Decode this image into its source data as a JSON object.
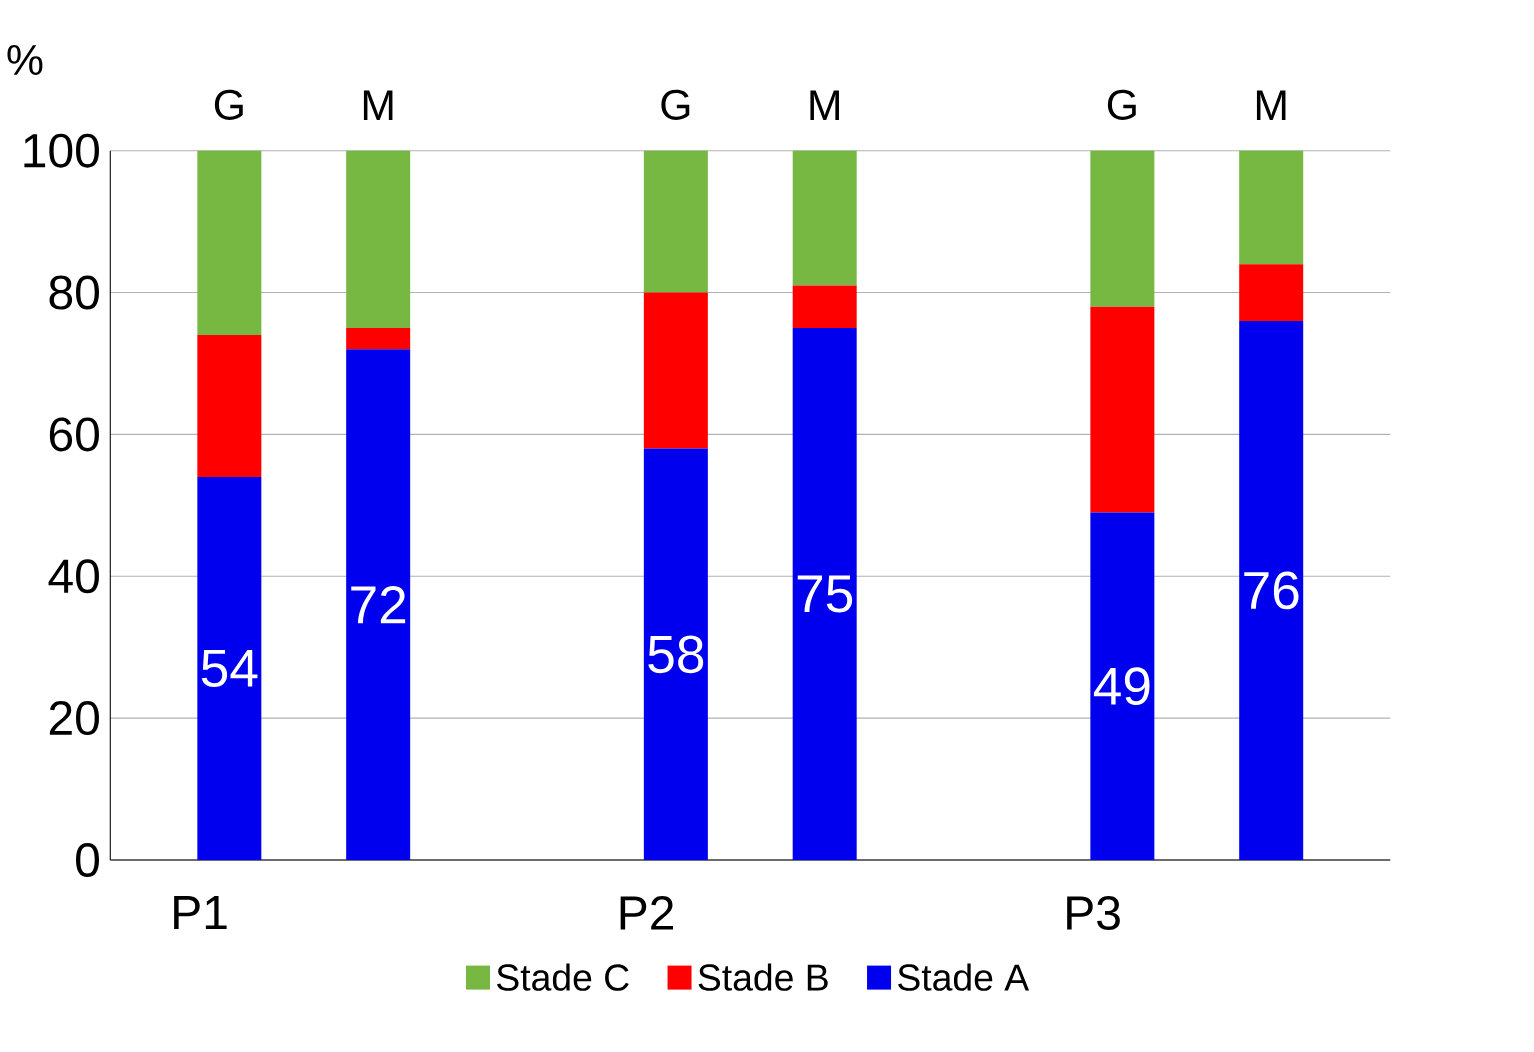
{
  "chart_data": {
    "type": "bar",
    "stacked": true,
    "ylabel": "%",
    "categories": [
      "G",
      "M",
      "G",
      "M",
      "G",
      "M"
    ],
    "series": [
      {
        "name": "Stade A",
        "color": "#0000ee",
        "values": [
          54,
          72,
          58,
          75,
          49,
          76
        ],
        "value_labels": [
          "54",
          "72",
          "58",
          "75",
          "49",
          "76"
        ]
      },
      {
        "name": "Stade B",
        "color": "#ff0000",
        "values": [
          20,
          3,
          22,
          6,
          29,
          8
        ]
      },
      {
        "name": "Stade C",
        "color": "#77b843",
        "values": [
          26,
          25,
          20,
          19,
          22,
          16
        ]
      }
    ],
    "annotations": [
      "P1",
      "P2",
      "P3"
    ],
    "ylim": [
      0,
      100
    ],
    "yticks": [
      0,
      20,
      40,
      60,
      80,
      100
    ],
    "grid": "y",
    "legend": "bottom"
  }
}
